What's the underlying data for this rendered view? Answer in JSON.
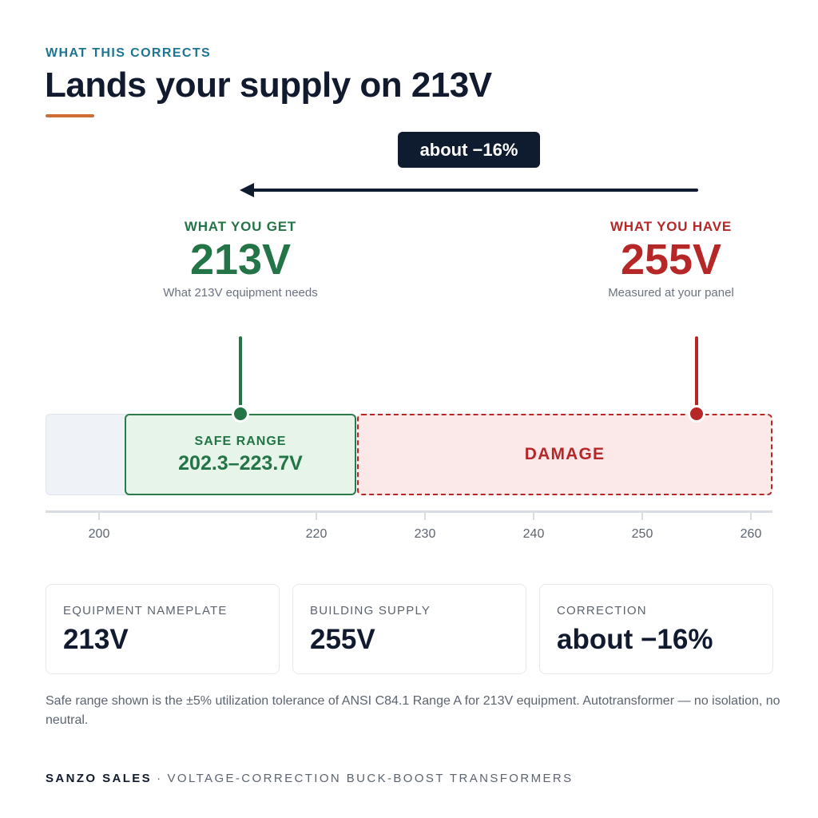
{
  "header": {
    "eyebrow": "WHAT THIS CORRECTS",
    "title": "Lands your supply on 213V"
  },
  "change_badge": "about −16%",
  "target": {
    "label": "WHAT YOU GET",
    "value": "213V",
    "caption": "What 213V equipment needs"
  },
  "current": {
    "label": "WHAT YOU HAVE",
    "value": "255V",
    "caption": "Measured at your panel"
  },
  "zones": {
    "safe_label": "SAFE RANGE",
    "safe_range": "202.3–223.7V",
    "damage_label": "DAMAGE"
  },
  "scale": {
    "ticks": [
      "200",
      "220",
      "230",
      "240",
      "250",
      "260"
    ]
  },
  "cards": [
    {
      "label": "EQUIPMENT NAMEPLATE",
      "value": "213V"
    },
    {
      "label": "BUILDING SUPPLY",
      "value": "255V"
    },
    {
      "label": "CORRECTION",
      "value": "about −16%"
    }
  ],
  "note": "Safe range shown is the ±5% utilization tolerance of ANSI C84.1 Range A for 213V equipment. Autotransformer — no isolation, no neutral.",
  "footer": {
    "brand": "SANZO SALES",
    "separator": "·",
    "tagline": "VOLTAGE-CORRECTION BUCK-BOOST TRANSFORMERS"
  },
  "colors": {
    "accent": "#1c7594",
    "safe": "#237446",
    "danger": "#b62727",
    "rule": "#cf6d33",
    "dark": "#0f1b2e"
  }
}
